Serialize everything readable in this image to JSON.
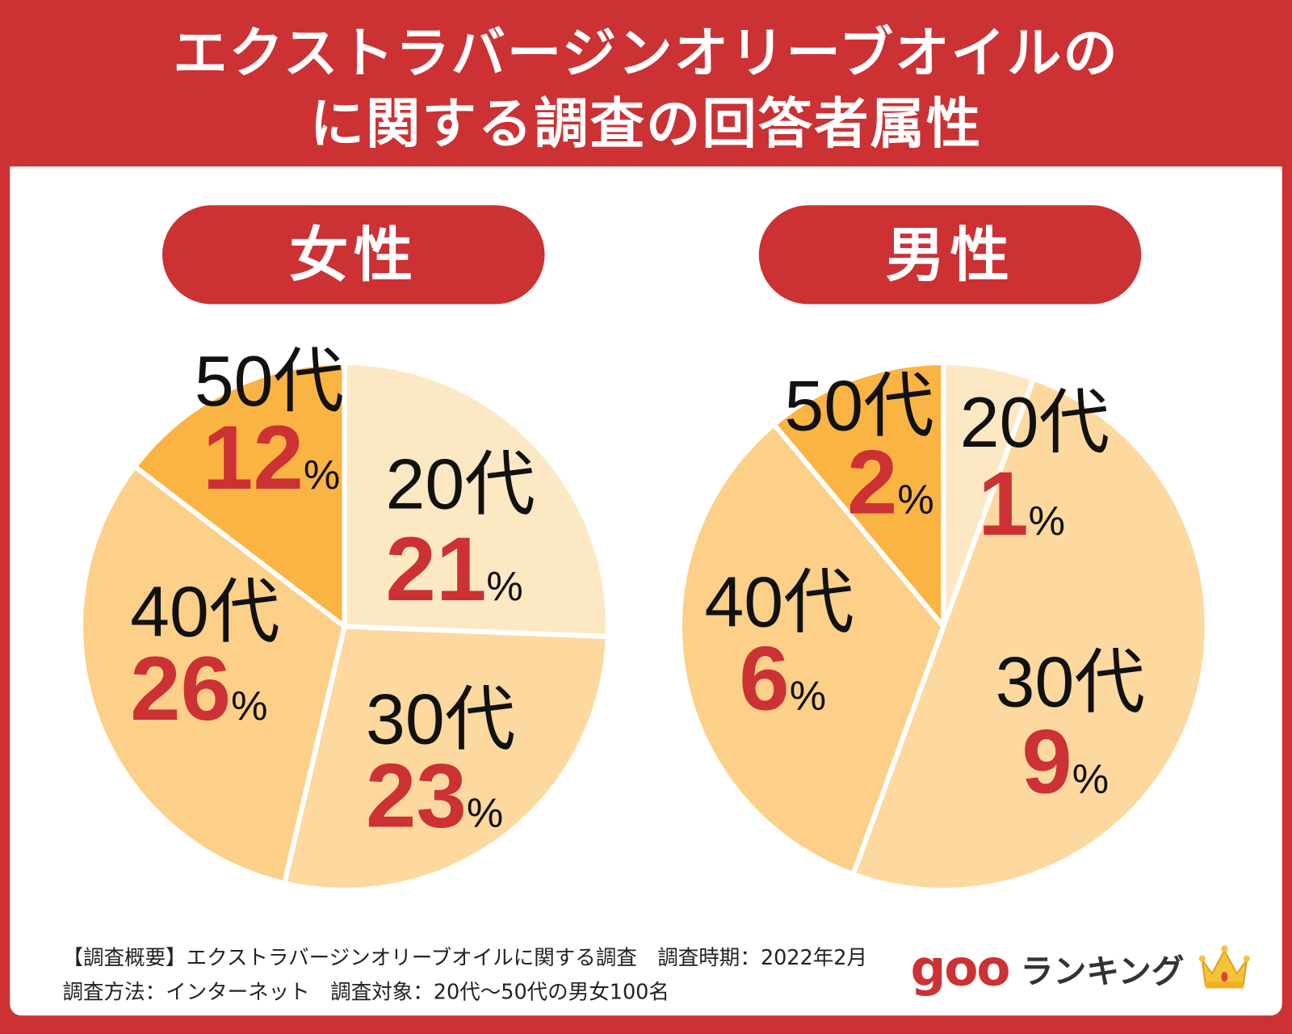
{
  "title": {
    "line1": "エクストラバージンオリーブオイルの",
    "line2": "に関する調査の回答者属性"
  },
  "chart_data": [
    {
      "type": "pie",
      "title": "女性",
      "categories": [
        "20代",
        "30代",
        "40代",
        "50代"
      ],
      "values": [
        21,
        23,
        26,
        12
      ],
      "unit": "%",
      "colors": [
        "#fde8c4",
        "#fdd99f",
        "#fdd089",
        "#fab444"
      ]
    },
    {
      "type": "pie",
      "title": "男性",
      "categories": [
        "20代",
        "30代",
        "40代",
        "50代"
      ],
      "values": [
        1,
        9,
        6,
        2
      ],
      "unit": "%",
      "colors": [
        "#fde8c4",
        "#fdd99f",
        "#fdd089",
        "#fab444"
      ]
    }
  ],
  "footer": {
    "line1": "【調査概要】エクストラバージンオリーブオイルに関する調査　調査時期：2022年2月",
    "line2": "調査方法：インターネット　調査対象：20代～50代の男女100名"
  },
  "logo": {
    "goo": "goo",
    "ranking": "ランキング"
  },
  "colors": {
    "brand": "#cc3134"
  }
}
